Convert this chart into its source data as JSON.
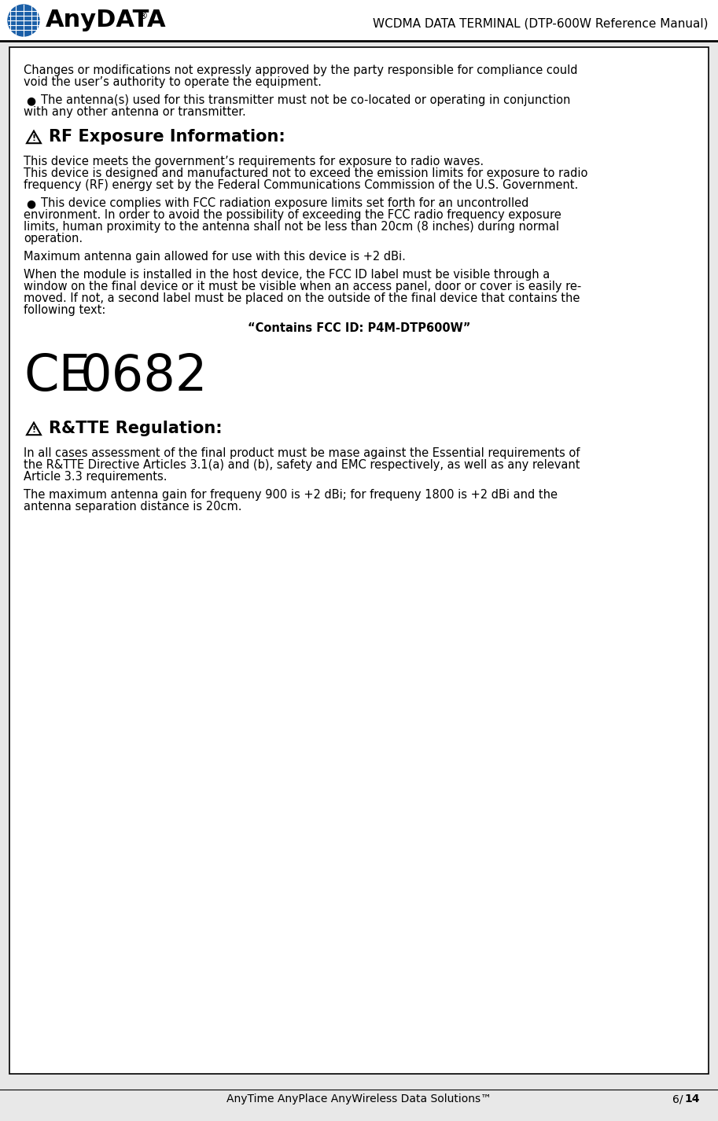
{
  "bg_color": "#ffffff",
  "header_bg": "#ffffff",
  "border_color": "#000000",
  "title_text": "WCDMA DATA TERMINAL (DTP-600W Reference Manual)",
  "footer_left": "AnyTime AnyPlace AnyWireless Data Solutions™",
  "footer_right": "6/14",
  "page_bg": "#e8e8e8",
  "content_blocks": [
    {
      "type": "plain",
      "text": "Changes or modifications not expressly approved by the party responsible for compliance could\nvoid the user’s authority to operate the equipment."
    },
    {
      "type": "bullet",
      "text": "The antenna(s) used for this transmitter must not be co-located or operating in conjunction\nwith any other antenna or transmitter."
    },
    {
      "type": "heading_warn",
      "text": "RF Exposure Information:"
    },
    {
      "type": "plain",
      "text": "This device meets the government’s requirements for exposure to radio waves.\nThis device is designed and manufactured not to exceed the emission limits for exposure to radio\nfrequency (RF) energy set by the Federal Communications Commission of the U.S. Government."
    },
    {
      "type": "bullet",
      "text": "This device complies with FCC radiation exposure limits set forth for an uncontrolled\nenvironment. In order to avoid the possibility of exceeding the FCC radio frequency exposure\nlimits, human proximity to the antenna shall not be less than 20cm (8 inches) during normal\noperation."
    },
    {
      "type": "plain",
      "text": "Maximum antenna gain allowed for use with this device is +2 dBi."
    },
    {
      "type": "plain",
      "text": "When the module is installed in the host device, the FCC ID label must be visible through a\nwindow on the final device or it must be visible when an access panel, door or cover is easily re-\nmoved. If not, a second label must be placed on the outside of the final device that contains the\nfollowing text:"
    },
    {
      "type": "centered_bold",
      "text": "“Contains FCC ID: P4M-DTP600W”"
    },
    {
      "type": "ce_logo",
      "text": "CE 0682"
    },
    {
      "type": "heading_warn",
      "text": "R&TTE Regulation:"
    },
    {
      "type": "plain",
      "text": "In all cases assessment of the final product must be mase against the Essential requirements of\nthe R&TTE Directive Articles 3.1(a) and (b), safety and EMC respectively, as well as any relevant\nArticle 3.3 requirements."
    },
    {
      "type": "plain",
      "text": "The maximum antenna gain for frequeny 900 is +2 dBi; for frequeny 1800 is +2 dBi and the\nantenna separation distance is 20cm."
    }
  ]
}
